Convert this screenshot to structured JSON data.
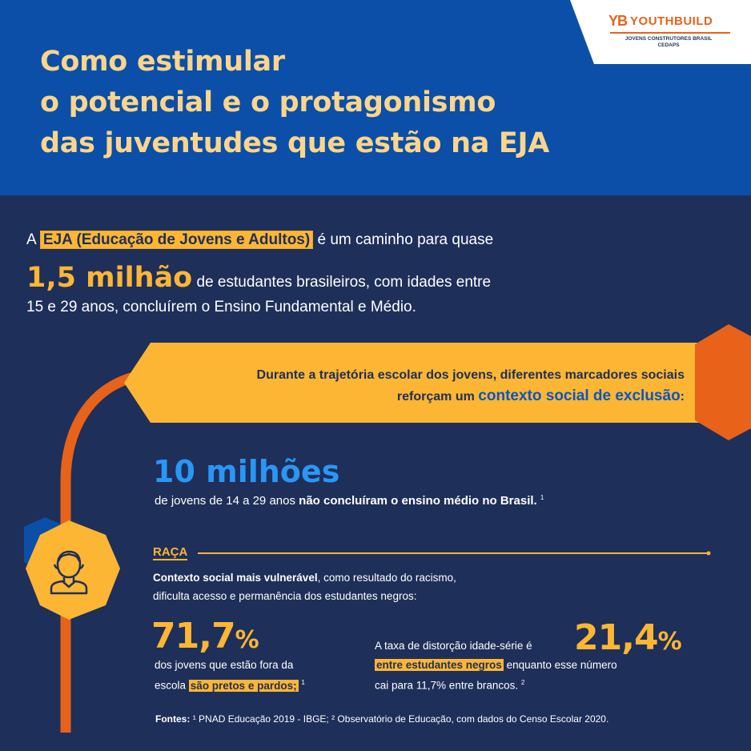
{
  "title": {
    "line1": "Como estimular",
    "line2": "o potencial e o protagonismo",
    "line3": "das juventudes que estão na EJA"
  },
  "logo": {
    "mark": "YB",
    "name": "YOUTHBUILD",
    "subtitle_line1": "JOVENS CONSTRUTORES BRASIL",
    "subtitle_line2": "CEDAPS"
  },
  "intro": {
    "prefix": "A",
    "highlight": "EJA (Educação de Jovens e Adultos)",
    "line1_rest": "é um caminho para quase",
    "big_number": "1,5 milhão",
    "line2_rest": "de estudantes brasileiros, com idades entre",
    "line3": "15 e 29 anos, concluírem o Ensino Fundamental e Médio."
  },
  "banner": {
    "line1": "Durante a trajetória escolar dos jovens, diferentes marcadores sociais",
    "line2_prefix": "reforçam um",
    "line2_accent": "contexto social de exclusão",
    "line2_suffix": ":"
  },
  "ten_millions": {
    "number": "10 milhões",
    "text_prefix": "de jovens de 14 a 29 anos",
    "text_bold": "não concluíram o ensino médio no Brasil.",
    "footnote": "1"
  },
  "raca": {
    "label": "RAÇA",
    "text_bold": "Contexto social mais vulnerável",
    "text_rest": ", como resultado do racismo,",
    "text_line2": "dificulta acesso e permanência dos estudantes negros:"
  },
  "stat1": {
    "value": "71,7",
    "unit": "%",
    "line1": "dos jovens que estão fora da",
    "line2_prefix": "escola",
    "line2_highlight": "são pretos e pardos;",
    "footnote": "1"
  },
  "stat2": {
    "value": "21,4",
    "unit": "%",
    "line1": "A taxa de distorção idade-série é",
    "line2_highlight": "entre estudantes negros",
    "line2_rest": "enquanto esse número",
    "line3": "cai para 11,7% entre brancos.",
    "footnote": "2"
  },
  "sources": {
    "label": "Fontes:",
    "text": "¹ PNAD Educação 2019 - IBGE; ² Observatório de Educação, com dados do Censo Escolar 2020."
  },
  "colors": {
    "navy": "#1e2f59",
    "blue": "#0b4fa8",
    "yellow": "#fcb634",
    "orange": "#e8621a",
    "light_blue": "#2a96f5",
    "title_yellow": "#fdd58a"
  },
  "icons": [
    "youthbuild-logo-icon",
    "student-avatar-icon"
  ]
}
